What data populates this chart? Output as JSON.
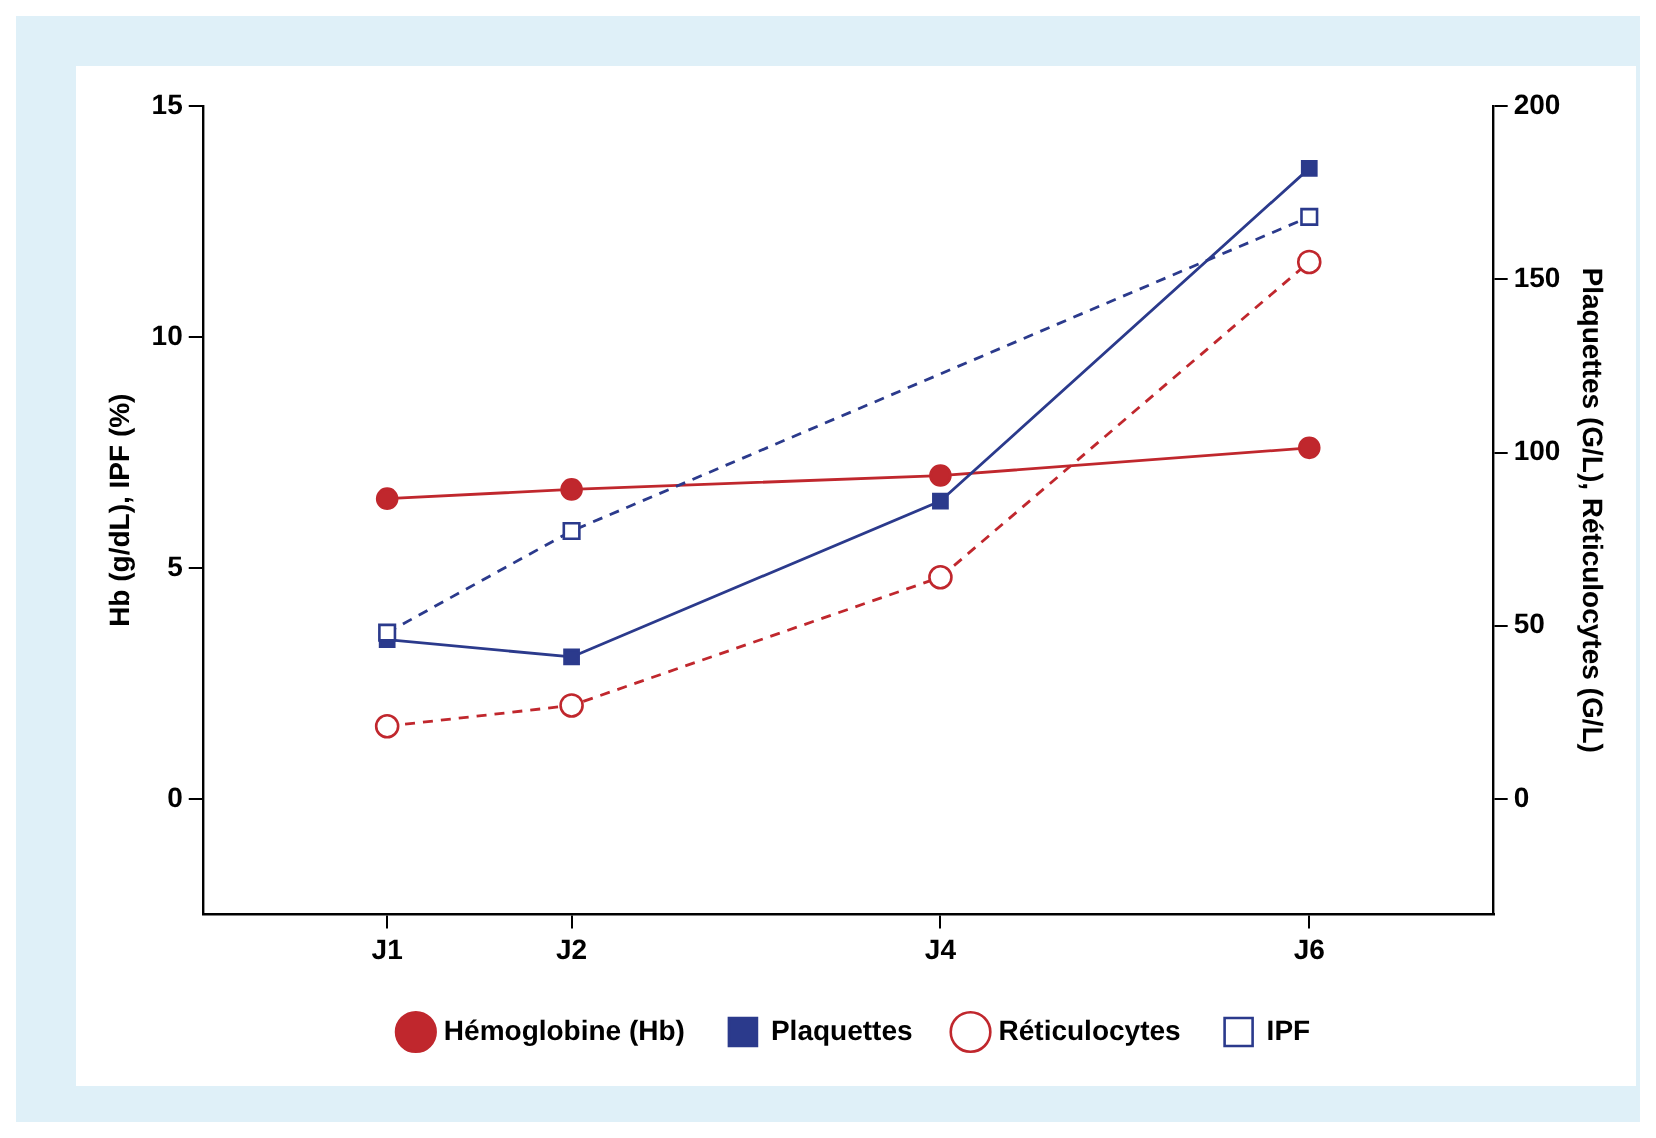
{
  "chart_data": {
    "type": "line",
    "ylabel": "Hb (g/dL), IPF (%)",
    "y2label": "Plaquettes (G/L), Réticulocytes (G/L)",
    "categories": [
      null,
      "J1",
      "J2",
      null,
      "J4",
      null,
      "J6",
      null
    ],
    "ylim": [
      -2.5,
      15
    ],
    "yticks": [
      0,
      5,
      10,
      15
    ],
    "y2lim": [
      -33.3,
      200
    ],
    "y2ticks": [
      0,
      50,
      100,
      150,
      200
    ],
    "grid": false,
    "legend": "bottom",
    "series": [
      {
        "name": "Hémoglobine (Hb)",
        "color": "#c0272d",
        "x": [
          "J1",
          "J2",
          "J4",
          "J6"
        ],
        "values": [
          6.5,
          6.7,
          7.0,
          7.6
        ],
        "marker": "circle",
        "line_style": "solid"
      },
      {
        "name": "Plaquettes",
        "color": "#2b3a8c",
        "x": [
          "J1",
          "J2",
          "J4",
          "J6"
        ],
        "values": [
          46,
          41,
          86,
          182
        ],
        "axis": "y2",
        "marker": "square",
        "line_style": "solid"
      },
      {
        "name": "Réticulocytes",
        "color": "#c0272d",
        "x": [
          "J1",
          "J2",
          "J4",
          "J6"
        ],
        "values": [
          21,
          27,
          64,
          155
        ],
        "axis": "y2",
        "marker": "circle",
        "line_style": "dashed"
      },
      {
        "name": "IPF",
        "color": "#2b3a8c",
        "x": [
          "J1",
          "J2",
          "J6"
        ],
        "values": [
          3.6,
          5.8,
          12.6
        ],
        "marker": "square",
        "line_style": "dashed"
      }
    ]
  }
}
